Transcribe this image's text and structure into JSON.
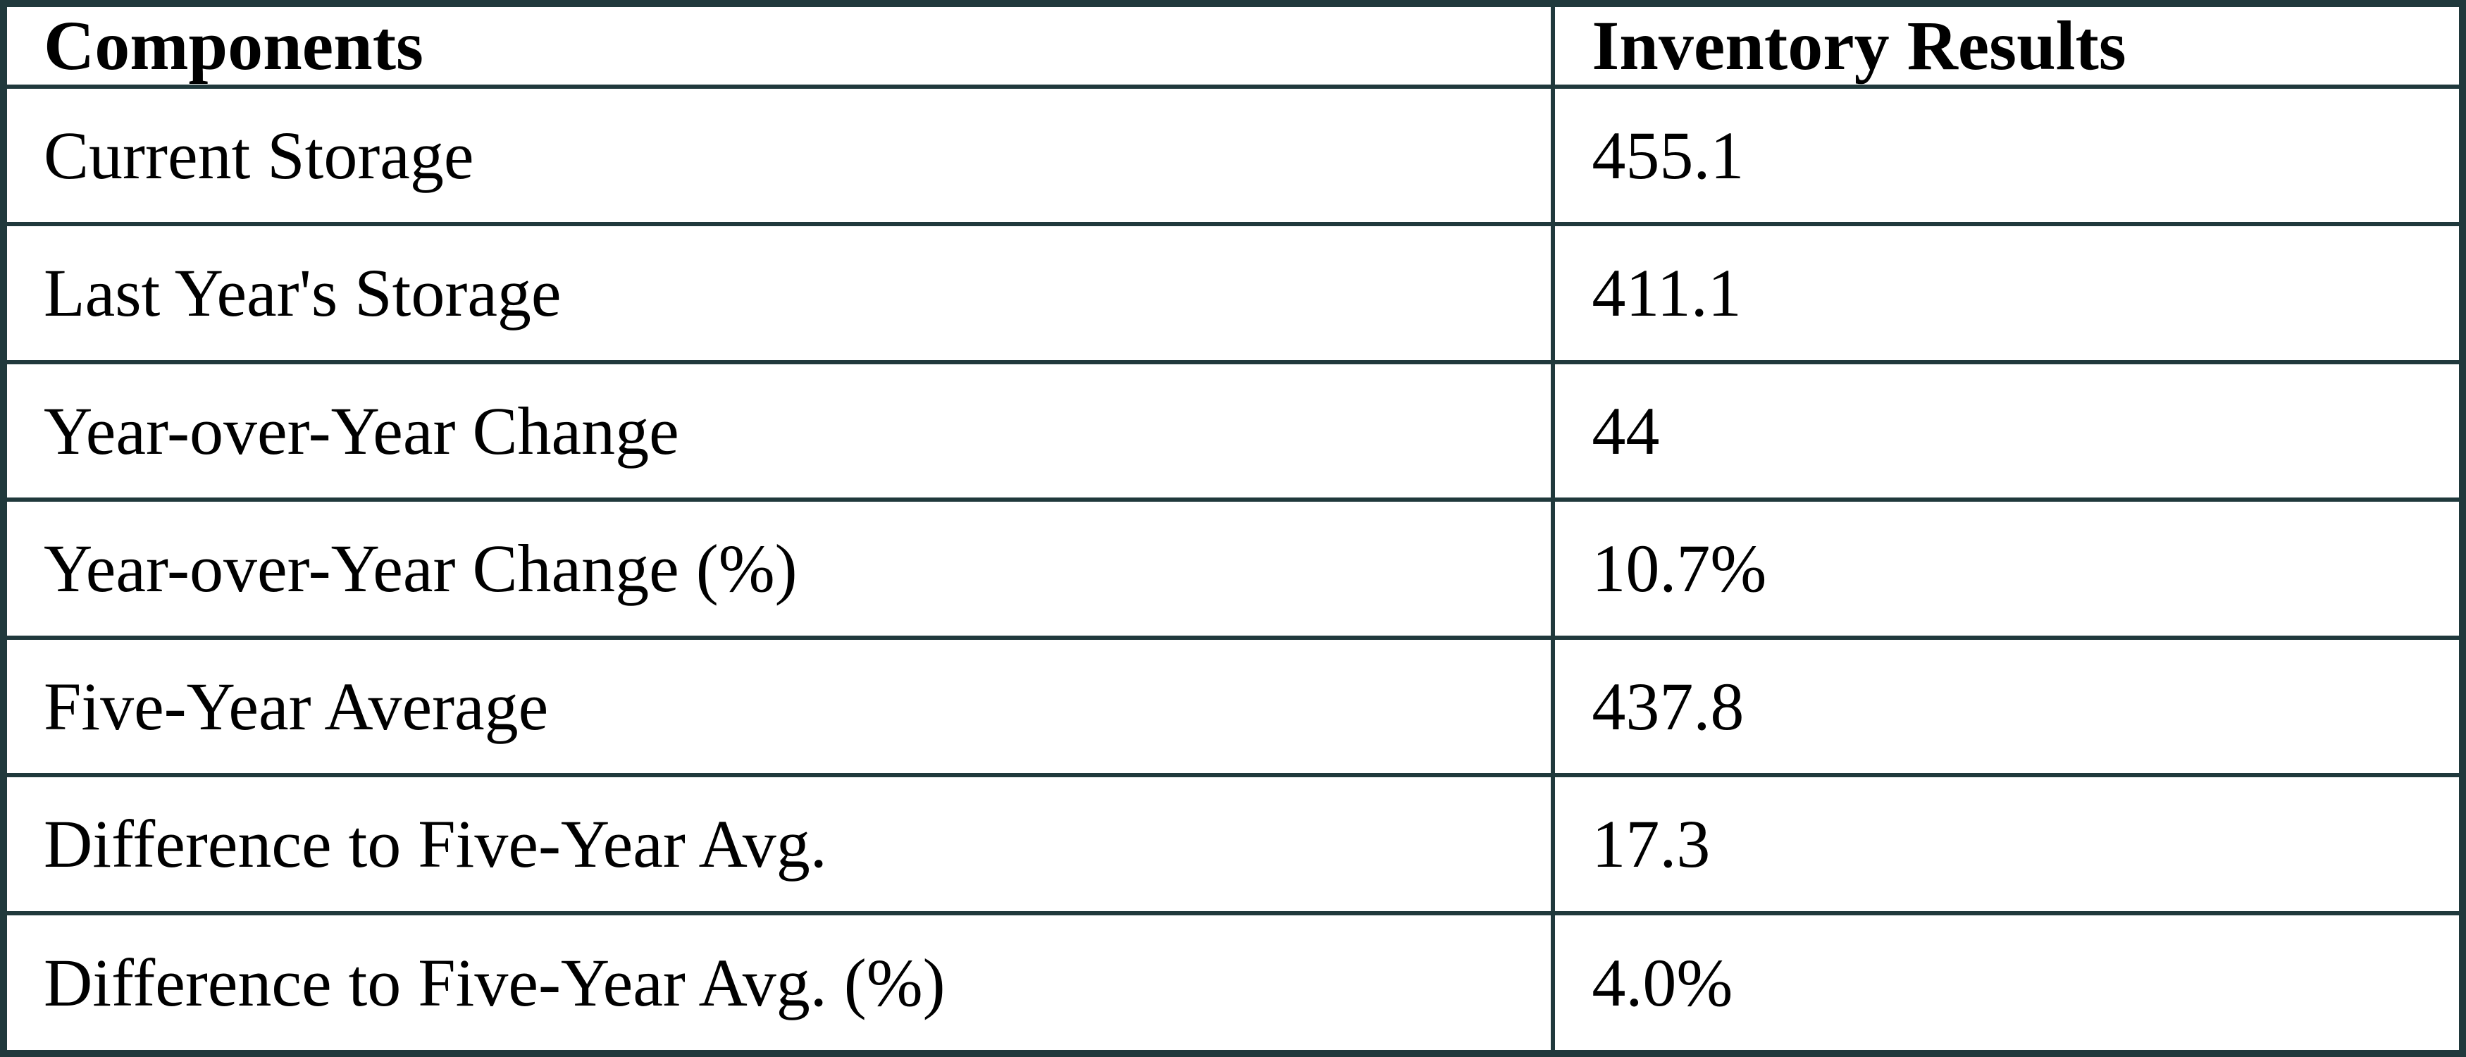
{
  "table": {
    "columns": [
      "Components",
      "Inventory Results"
    ],
    "rows": [
      {
        "label": "Current Storage",
        "value": "455.1"
      },
      {
        "label": "Last Year's Storage",
        "value": "411.1"
      },
      {
        "label": "Year-over-Year Change",
        "value": "44"
      },
      {
        "label": "Year-over-Year Change (%)",
        "value": "10.7%"
      },
      {
        "label": "Five-Year Average",
        "value": "437.8"
      },
      {
        "label": "Difference to Five-Year Avg.",
        "value": "17.3"
      },
      {
        "label": "Difference to Five-Year Avg. (%)",
        "value": "4.0%"
      }
    ]
  }
}
